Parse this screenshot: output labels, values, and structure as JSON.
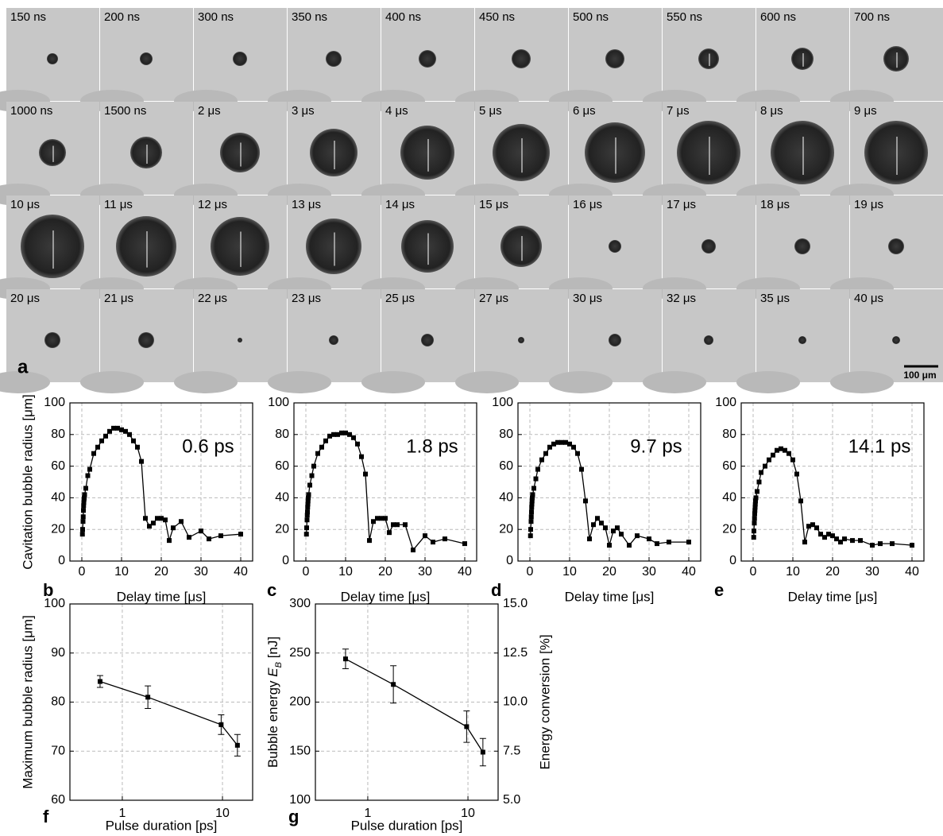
{
  "image_panel": {
    "label": "a",
    "scale_bar": "100 μm",
    "frame_labels": [
      "150 ns",
      "200 ns",
      "300 ns",
      "350 ns",
      "400 ns",
      "450 ns",
      "500 ns",
      "550 ns",
      "600 ns",
      "700 ns",
      "1000 ns",
      "1500 ns",
      "2 μs",
      "3 μs",
      "4 μs",
      "5 μs",
      "6 μs",
      "7 μs",
      "8 μs",
      "9 μs",
      "10 μs",
      "11 μs",
      "12 μs",
      "13 μs",
      "14 μs",
      "15 μs",
      "16 μs",
      "17 μs",
      "18 μs",
      "19 μs",
      "20 μs",
      "21 μs",
      "22 μs",
      "23 μs",
      "25 μs",
      "27 μs",
      "30 μs",
      "32 μs",
      "35 μs",
      "40 μs"
    ]
  },
  "chart_data": [
    {
      "type": "line",
      "panel_label": "b",
      "annotation": "0.6 ps",
      "x_label": "Delay time [μs]",
      "y_label": "Cavitation bubble radius [μm]",
      "x": [
        0.15,
        0.2,
        0.3,
        0.35,
        0.4,
        0.45,
        0.5,
        0.55,
        0.6,
        0.7,
        1,
        1.5,
        2,
        3,
        4,
        5,
        6,
        7,
        8,
        9,
        10,
        11,
        12,
        13,
        14,
        15,
        16,
        17,
        18,
        19,
        20,
        21,
        22,
        23,
        25,
        27,
        30,
        32,
        35,
        40
      ],
      "values": [
        17,
        20,
        25,
        28,
        32,
        35,
        37,
        39,
        40,
        42,
        46,
        54,
        58,
        68,
        72,
        76,
        79,
        82,
        84,
        84,
        83,
        82,
        80,
        76,
        72,
        63,
        27,
        22,
        24,
        27,
        27,
        26,
        13,
        21,
        25,
        15,
        19,
        14,
        16,
        17
      ],
      "color": "#000000",
      "xlim": [
        -3,
        43
      ],
      "ylim": [
        0,
        100
      ],
      "xticks": [
        0,
        10,
        20,
        30,
        40
      ],
      "yticks": [
        0,
        20,
        40,
        60,
        80,
        100
      ],
      "grid": true
    },
    {
      "type": "line",
      "panel_label": "c",
      "annotation": "1.8 ps",
      "x_label": "Delay time [μs]",
      "x": [
        0.15,
        0.2,
        0.3,
        0.35,
        0.4,
        0.45,
        0.5,
        0.55,
        0.6,
        0.7,
        1,
        1.5,
        2,
        3,
        4,
        5,
        6,
        7,
        8,
        9,
        10,
        11,
        12,
        13,
        14,
        15,
        16,
        17,
        18,
        19,
        20,
        21,
        22,
        23,
        25,
        27,
        30,
        32,
        35,
        40
      ],
      "values": [
        17,
        21,
        26,
        29,
        31,
        34,
        36,
        38,
        40,
        42,
        48,
        54,
        60,
        68,
        72,
        76,
        79,
        80,
        80,
        81,
        81,
        80,
        78,
        74,
        66,
        55,
        13,
        25,
        27,
        27,
        27,
        18,
        23,
        23,
        23,
        7,
        16,
        12,
        14,
        11
      ],
      "color": "#000000",
      "xlim": [
        -3,
        43
      ],
      "ylim": [
        0,
        100
      ],
      "xticks": [
        0,
        10,
        20,
        30,
        40
      ],
      "yticks": [
        0,
        20,
        40,
        60,
        80,
        100
      ],
      "grid": true
    },
    {
      "type": "line",
      "panel_label": "d",
      "annotation": "9.7 ps",
      "x_label": "Delay time [μs]",
      "x": [
        0.15,
        0.2,
        0.3,
        0.35,
        0.4,
        0.45,
        0.5,
        0.55,
        0.6,
        0.7,
        1,
        1.5,
        2,
        3,
        4,
        5,
        6,
        7,
        8,
        9,
        10,
        11,
        12,
        13,
        14,
        15,
        16,
        17,
        18,
        19,
        20,
        21,
        22,
        23,
        25,
        27,
        30,
        32,
        35,
        40
      ],
      "values": [
        16,
        20,
        25,
        28,
        31,
        34,
        36,
        38,
        40,
        42,
        46,
        52,
        58,
        64,
        68,
        72,
        74,
        75,
        75,
        75,
        74,
        72,
        68,
        58,
        38,
        14,
        23,
        27,
        24,
        21,
        10,
        19,
        21,
        17,
        10,
        16,
        14,
        11,
        12,
        12
      ],
      "color": "#000000",
      "xlim": [
        -3,
        43
      ],
      "ylim": [
        0,
        100
      ],
      "xticks": [
        0,
        10,
        20,
        30,
        40
      ],
      "yticks": [
        0,
        20,
        40,
        60,
        80,
        100
      ],
      "grid": true
    },
    {
      "type": "line",
      "panel_label": "e",
      "annotation": "14.1 ps",
      "x_label": "Delay time [μs]",
      "x": [
        0.15,
        0.2,
        0.3,
        0.35,
        0.4,
        0.45,
        0.5,
        0.55,
        0.6,
        0.7,
        1,
        1.5,
        2,
        3,
        4,
        5,
        6,
        7,
        8,
        9,
        10,
        11,
        12,
        13,
        14,
        15,
        16,
        17,
        18,
        19,
        20,
        21,
        22,
        23,
        25,
        27,
        30,
        32,
        35,
        40
      ],
      "values": [
        15,
        19,
        24,
        27,
        30,
        32,
        34,
        36,
        38,
        40,
        44,
        50,
        56,
        60,
        64,
        67,
        70,
        71,
        70,
        68,
        64,
        55,
        38,
        12,
        22,
        23,
        21,
        17,
        15,
        17,
        16,
        14,
        12,
        14,
        13,
        13,
        10,
        11,
        11,
        10
      ],
      "color": "#000000",
      "xlim": [
        -3,
        43
      ],
      "ylim": [
        0,
        100
      ],
      "xticks": [
        0,
        10,
        20,
        30,
        40
      ],
      "yticks": [
        0,
        20,
        40,
        60,
        80,
        100
      ],
      "grid": true
    },
    {
      "type": "line",
      "panel_label": "f",
      "x_label": "Pulse duration [ps]",
      "y_label": "Maximum bubble radius [μm]",
      "x": [
        0.6,
        1.8,
        9.7,
        14.1
      ],
      "values": [
        84.2,
        81.0,
        75.4,
        71.2
      ],
      "errors": [
        1.2,
        2.3,
        2.0,
        2.2
      ],
      "color": "#000000",
      "xscale": "log",
      "xlim": [
        0.3,
        20
      ],
      "ylim": [
        60,
        100
      ],
      "xticks": [
        1,
        10
      ],
      "yticks": [
        60,
        70,
        80,
        90,
        100
      ],
      "grid": true
    },
    {
      "type": "line",
      "panel_label": "g",
      "x_label": "Pulse duration [ps]",
      "y_label_parts": [
        "Bubble energy ",
        "E",
        "B",
        " [nJ]"
      ],
      "y2_label": "Energy conversion [%]",
      "y2_color": "#1a1aff",
      "x": [
        0.6,
        1.8,
        9.7,
        14.1
      ],
      "values": [
        244,
        218,
        175,
        149
      ],
      "errors": [
        10,
        19,
        16,
        14
      ],
      "color": "#000000",
      "xscale": "log",
      "xlim": [
        0.3,
        20
      ],
      "ylim": [
        100,
        300
      ],
      "xticks": [
        1,
        10
      ],
      "yticks": [
        100,
        150,
        200,
        250,
        300
      ],
      "y2lim": [
        5,
        15
      ],
      "y2ticks": [
        {
          "value": 5,
          "label": "5.0"
        },
        {
          "value": 7.5,
          "label": "7.5"
        },
        {
          "value": 10,
          "label": "10.0"
        },
        {
          "value": 12.5,
          "label": "12.5"
        },
        {
          "value": 15,
          "label": "15.0"
        }
      ],
      "grid": true
    }
  ]
}
